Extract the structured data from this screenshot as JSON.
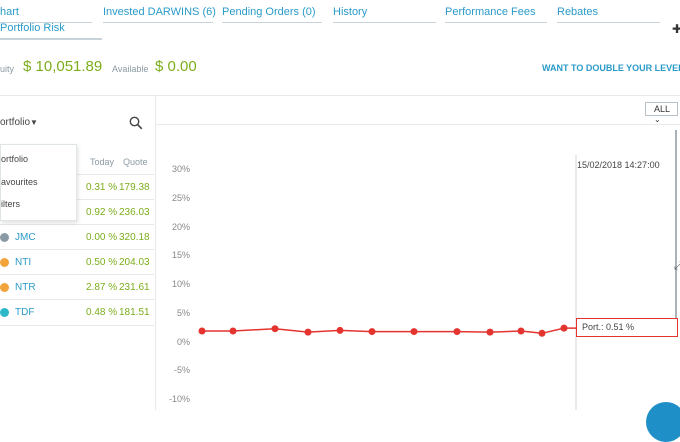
{
  "tabs": [
    {
      "label": "hart"
    },
    {
      "label": "Invested DARWINS (6)"
    },
    {
      "label": "Pending Orders (0)"
    },
    {
      "label": "History"
    },
    {
      "label": "Performance Fees"
    },
    {
      "label": "Rebates"
    }
  ],
  "sub_tab": "Portfolio Risk",
  "account": {
    "equity_label": "uity",
    "equity_value": "$ 10,051.89",
    "available_label": "Available",
    "available_value": "$ 0.00",
    "promo_link": "WANT TO DOUBLE YOUR LEVERAG"
  },
  "portfolio": {
    "selector_label": "ortfolio",
    "col_today": "Today",
    "col_quote": "Quote",
    "dropdown": [
      "ortfolio",
      "avourites",
      "ilters"
    ],
    "rows": [
      {
        "name": "",
        "today": "0.31 %",
        "quote": "179.38",
        "color": ""
      },
      {
        "name": "",
        "today": "0.92 %",
        "quote": "236.03",
        "color": ""
      },
      {
        "name": "JMC",
        "today": "0.00 %",
        "quote": "320.18",
        "color": "#8a9aa4"
      },
      {
        "name": "NTI",
        "today": "0.50 %",
        "quote": "204.03",
        "color": "#f2a33a"
      },
      {
        "name": "NTR",
        "today": "2.87 %",
        "quote": "231.61",
        "color": "#f2a33a"
      },
      {
        "name": "TDF",
        "today": "0.48 %",
        "quote": "181.51",
        "color": "#2cb8c9"
      }
    ]
  },
  "range_select": "ALL",
  "chart_data": {
    "type": "line",
    "y_ticks": [
      "30%",
      "25%",
      "20%",
      "15%",
      "10%",
      "5%",
      "0%",
      "-5%",
      "-10%"
    ],
    "ylim": [
      -10,
      30
    ],
    "series": [
      {
        "values": [
          2.0,
          2.0,
          2.4,
          1.8,
          2.1,
          1.9,
          1.9,
          1.9,
          1.8,
          2.0,
          1.6,
          2.5,
          2.5
        ]
      }
    ],
    "cursor_time": "15/02/2018 14:27:00",
    "tooltip": "Port.: 0.51 %",
    "line_color": "#e3342f"
  }
}
